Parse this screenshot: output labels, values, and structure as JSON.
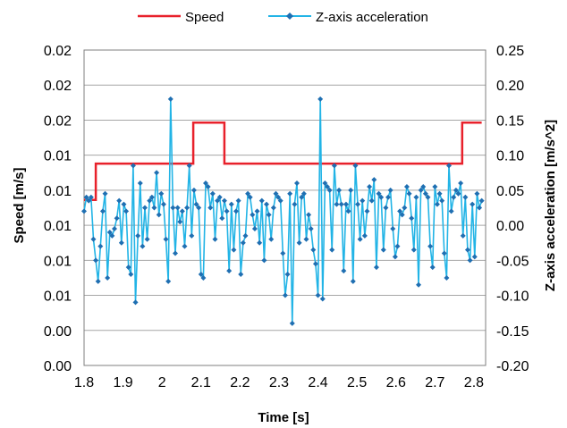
{
  "chart_data": {
    "type": "line",
    "xlabel": "Time [s]",
    "ylabel_left": "Speed [m/s]",
    "ylabel_right": "Z-axis acceleration [m/s^2]",
    "xlim": [
      1.8,
      2.83
    ],
    "x_ticks": [
      "1.8",
      "1.9",
      "2",
      "2.1",
      "2.2",
      "2.3",
      "2.4",
      "2.5",
      "2.6",
      "2.7",
      "2.8"
    ],
    "x_tick_values": [
      1.8,
      1.9,
      2.0,
      2.1,
      2.2,
      2.3,
      2.4,
      2.5,
      2.6,
      2.7,
      2.8
    ],
    "y_left_ticks": [
      "0.02",
      "0.02",
      "0.02",
      "0.01",
      "0.01",
      "0.01",
      "0.01",
      "0.01",
      "0.00",
      "0.00",
      "0.00"
    ],
    "ylim_right": [
      -0.2,
      0.25
    ],
    "y_right_ticks": [
      "0.25",
      "0.20",
      "0.15",
      "0.10",
      "0.05",
      "0.00",
      "-0.05",
      "-0.10",
      "-0.15",
      "-0.20"
    ],
    "y_right_tick_values": [
      0.25,
      0.2,
      0.15,
      0.1,
      0.05,
      0.0,
      -0.05,
      -0.1,
      -0.15,
      -0.2
    ],
    "grid": "horizontal",
    "legend_position": "top",
    "series": [
      {
        "name": "Speed",
        "axis": "left",
        "color": "#e8212b",
        "marker": "none",
        "step": true,
        "values_note": "",
        "x": [
          1.8,
          1.83,
          1.83,
          2.08,
          2.08,
          2.16,
          2.16,
          2.77,
          2.77,
          2.82
        ],
        "y": [
          0.0105,
          0.0105,
          0.0128,
          0.0128,
          0.0154,
          0.0154,
          0.0128,
          0.0128,
          0.0154,
          0.0154
        ]
      },
      {
        "name": "Z-axis acceleration",
        "axis": "right",
        "color": "#22b4e6",
        "marker": "diamond",
        "x": [
          1.8,
          1.806,
          1.812,
          1.818,
          1.824,
          1.83,
          1.836,
          1.842,
          1.848,
          1.854,
          1.86,
          1.866,
          1.872,
          1.878,
          1.884,
          1.89,
          1.896,
          1.902,
          1.908,
          1.914,
          1.92,
          1.926,
          1.932,
          1.938,
          1.944,
          1.95,
          1.956,
          1.962,
          1.968,
          1.974,
          1.98,
          1.986,
          1.992,
          1.998,
          2.004,
          2.01,
          2.016,
          2.022,
          2.028,
          2.034,
          2.04,
          2.046,
          2.052,
          2.058,
          2.064,
          2.07,
          2.076,
          2.082,
          2.088,
          2.094,
          2.1,
          2.106,
          2.112,
          2.118,
          2.124,
          2.13,
          2.136,
          2.142,
          2.148,
          2.154,
          2.16,
          2.166,
          2.172,
          2.178,
          2.184,
          2.19,
          2.196,
          2.202,
          2.208,
          2.214,
          2.22,
          2.226,
          2.232,
          2.238,
          2.244,
          2.25,
          2.256,
          2.262,
          2.268,
          2.274,
          2.28,
          2.286,
          2.292,
          2.298,
          2.304,
          2.31,
          2.316,
          2.322,
          2.328,
          2.334,
          2.34,
          2.346,
          2.352,
          2.358,
          2.364,
          2.37,
          2.376,
          2.382,
          2.388,
          2.394,
          2.4,
          2.406,
          2.412,
          2.418,
          2.424,
          2.43,
          2.436,
          2.442,
          2.448,
          2.454,
          2.46,
          2.466,
          2.472,
          2.478,
          2.484,
          2.49,
          2.496,
          2.502,
          2.508,
          2.514,
          2.52,
          2.526,
          2.532,
          2.538,
          2.544,
          2.55,
          2.556,
          2.562,
          2.568,
          2.574,
          2.58,
          2.586,
          2.592,
          2.598,
          2.604,
          2.61,
          2.616,
          2.622,
          2.628,
          2.634,
          2.64,
          2.646,
          2.652,
          2.658,
          2.664,
          2.67,
          2.676,
          2.682,
          2.688,
          2.694,
          2.7,
          2.706,
          2.712,
          2.718,
          2.724,
          2.73,
          2.736,
          2.742,
          2.748,
          2.754,
          2.76,
          2.766,
          2.772,
          2.778,
          2.784,
          2.79,
          2.796,
          2.802,
          2.808,
          2.814,
          2.82
        ],
        "y": [
          0.02,
          0.04,
          0.035,
          0.04,
          -0.02,
          -0.05,
          -0.08,
          -0.03,
          0.02,
          0.045,
          -0.075,
          -0.01,
          -0.015,
          -0.005,
          0.01,
          0.035,
          -0.025,
          0.03,
          0.02,
          -0.06,
          -0.07,
          0.085,
          -0.11,
          -0.015,
          0.06,
          -0.03,
          0.025,
          -0.02,
          0.035,
          0.04,
          0.025,
          0.075,
          0.015,
          0.045,
          0.03,
          -0.02,
          -0.08,
          0.18,
          0.025,
          -0.04,
          0.025,
          0.005,
          0.02,
          -0.03,
          0.025,
          0.085,
          -0.015,
          0.05,
          0.03,
          0.025,
          -0.07,
          -0.075,
          0.06,
          0.055,
          0.025,
          0.045,
          -0.02,
          0.035,
          0.04,
          0.01,
          0.035,
          0.02,
          -0.065,
          0.03,
          -0.035,
          0.02,
          0.035,
          -0.07,
          -0.025,
          -0.015,
          0.045,
          0.04,
          0.015,
          -0.005,
          0.02,
          -0.025,
          0.035,
          -0.05,
          0.03,
          0.015,
          -0.02,
          0.025,
          0.045,
          0.04,
          0.035,
          -0.04,
          -0.1,
          -0.07,
          0.045,
          -0.14,
          0.03,
          0.06,
          -0.025,
          0.04,
          0.045,
          -0.02,
          0.015,
          -0.005,
          -0.035,
          -0.055,
          -0.1,
          0.18,
          -0.105,
          0.06,
          0.055,
          0.05,
          -0.035,
          0.085,
          0.03,
          0.05,
          0.03,
          -0.065,
          0.03,
          0.02,
          0.05,
          -0.08,
          0.085,
          0.03,
          -0.02,
          0.035,
          -0.015,
          0.02,
          0.055,
          0.035,
          0.065,
          -0.06,
          0.045,
          0.04,
          -0.035,
          0.025,
          0.04,
          0.05,
          -0.005,
          -0.045,
          -0.03,
          0.02,
          0.015,
          0.025,
          0.055,
          0.045,
          0.01,
          -0.035,
          0.04,
          -0.085,
          0.05,
          0.055,
          0.045,
          0.04,
          -0.03,
          -0.06,
          0.055,
          0.03,
          0.045,
          0.035,
          -0.04,
          -0.075,
          0.085,
          0.02,
          0.04,
          0.05,
          0.045,
          0.06,
          -0.015,
          0.04,
          -0.035,
          -0.05,
          0.03,
          -0.045,
          0.045,
          0.025,
          0.035
        ]
      }
    ]
  }
}
